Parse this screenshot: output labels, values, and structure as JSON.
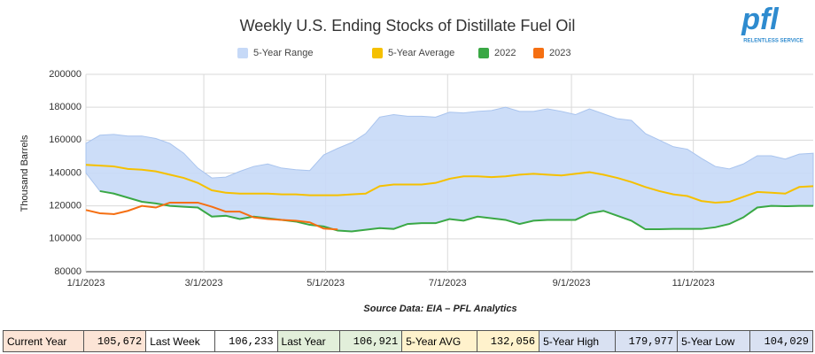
{
  "chart_data": {
    "type": "line",
    "title": "Weekly U.S. Ending Stocks of Distillate Fuel Oil",
    "y_label": "Thousand Barrels",
    "source": "Source Data: EIA – PFL Analytics",
    "x": [
      0,
      7,
      14,
      21,
      28,
      35,
      42,
      49,
      56,
      63,
      70,
      77,
      84,
      91,
      98,
      105,
      112,
      119,
      126,
      133,
      140,
      147,
      154,
      161,
      168,
      175,
      182,
      189,
      196,
      203,
      210,
      217,
      224,
      231,
      238,
      245,
      252,
      259,
      266,
      273,
      280,
      287,
      294,
      301,
      308,
      315,
      322,
      329,
      336,
      343,
      350,
      357,
      364
    ],
    "xlim": [
      0,
      364
    ],
    "xticks": [
      {
        "value": 0,
        "label": "1/1/2023"
      },
      {
        "value": 59,
        "label": "3/1/2023"
      },
      {
        "value": 120,
        "label": "5/1/2023"
      },
      {
        "value": 181,
        "label": "7/1/2023"
      },
      {
        "value": 243,
        "label": "9/1/2023"
      },
      {
        "value": 304,
        "label": "11/1/2023"
      }
    ],
    "ylim": [
      80000,
      200000
    ],
    "yticks": [
      80000,
      100000,
      120000,
      140000,
      160000,
      180000,
      200000
    ],
    "grid": true,
    "legend": "top",
    "series": [
      {
        "name": "5-Year Range",
        "color": "#c6d9f7",
        "high": [
          158000,
          163000,
          163500,
          162500,
          162500,
          161000,
          158000,
          152000,
          143000,
          137000,
          137500,
          141000,
          144000,
          145500,
          143000,
          142000,
          141500,
          151000,
          155000,
          158500,
          164000,
          174000,
          175500,
          174500,
          174500,
          174000,
          177000,
          176500,
          177500,
          178000,
          180000,
          177500,
          177500,
          179000,
          177500,
          175500,
          179000,
          176000,
          173000,
          172000,
          164000,
          160000,
          156000,
          154500,
          149000,
          144000,
          142500,
          145500,
          150500,
          150500,
          148500,
          151500,
          152000
        ],
        "low": [
          140000,
          129000,
          127500,
          125000,
          122500,
          121500,
          120000,
          119500,
          119000,
          113500,
          114000,
          112000,
          113500,
          112500,
          111500,
          110500,
          108500,
          107500,
          105000,
          104500,
          105500,
          106500,
          106000,
          109000,
          109500,
          109500,
          112000,
          111000,
          113500,
          112500,
          111500,
          109000,
          111000,
          111500,
          111500,
          111500,
          115500,
          117000,
          114000,
          111000,
          105800,
          105800,
          106000,
          106000,
          106000,
          107000,
          109000,
          113000,
          119000,
          120000,
          119800,
          120000,
          120000
        ]
      },
      {
        "name": "5-Year Average",
        "color": "#f5c000",
        "values": [
          145000,
          144500,
          144000,
          142500,
          142000,
          141000,
          139000,
          137000,
          134000,
          129500,
          128000,
          127500,
          127500,
          127500,
          127000,
          127000,
          126500,
          126500,
          126500,
          127000,
          127500,
          132000,
          133000,
          133000,
          133000,
          134000,
          136500,
          138000,
          138000,
          137500,
          138000,
          139000,
          139500,
          139000,
          138500,
          139500,
          140500,
          139000,
          137000,
          134500,
          131500,
          129000,
          127000,
          126000,
          123000,
          122000,
          122500,
          125500,
          128500,
          128000,
          127500,
          131500,
          132000
        ]
      },
      {
        "name": "2022",
        "color": "#3aa845",
        "values": [
          null,
          129000,
          127500,
          125000,
          122500,
          121500,
          120000,
          119500,
          119000,
          113500,
          114000,
          112000,
          113500,
          112500,
          111500,
          110500,
          108500,
          107500,
          105000,
          104500,
          105500,
          106500,
          106000,
          109000,
          109500,
          109500,
          112000,
          111000,
          113500,
          112500,
          111500,
          109000,
          111000,
          111500,
          111500,
          111500,
          115500,
          117000,
          114000,
          111000,
          105800,
          105800,
          106000,
          106000,
          106000,
          107000,
          109000,
          113000,
          119000,
          120000,
          119800,
          120000,
          120000
        ]
      },
      {
        "name": "2023",
        "color": "#f56f12",
        "values": [
          117500,
          115500,
          115000,
          117000,
          120000,
          119000,
          122000,
          122000,
          122000,
          119500,
          116500,
          116500,
          113000,
          112000,
          111500,
          111000,
          110000,
          106233,
          105672,
          null,
          null,
          null,
          null,
          null,
          null,
          null,
          null,
          null,
          null,
          null,
          null,
          null,
          null,
          null,
          null,
          null,
          null,
          null,
          null,
          null,
          null,
          null,
          null,
          null,
          null,
          null,
          null,
          null,
          null,
          null,
          null,
          null,
          null
        ]
      }
    ]
  },
  "logo": {
    "text": "pfl",
    "tagline": "RELENTLESS SERVICE"
  },
  "table": {
    "cells": [
      {
        "label": "Current Year",
        "value": "105,672",
        "color": "#fce4d6"
      },
      {
        "label": "Last Week",
        "value": "106,233",
        "color": "#ffffff"
      },
      {
        "label": "Last Year",
        "value": "106,921",
        "color": "#e2efda"
      },
      {
        "label": "5-Year AVG",
        "value": "132,056",
        "color": "#fff2cc"
      },
      {
        "label": "5-Year High",
        "value": "179,977",
        "color": "#d9e1f2"
      },
      {
        "label": "5-Year Low",
        "value": "104,029",
        "color": "#d9e1f2"
      }
    ]
  }
}
